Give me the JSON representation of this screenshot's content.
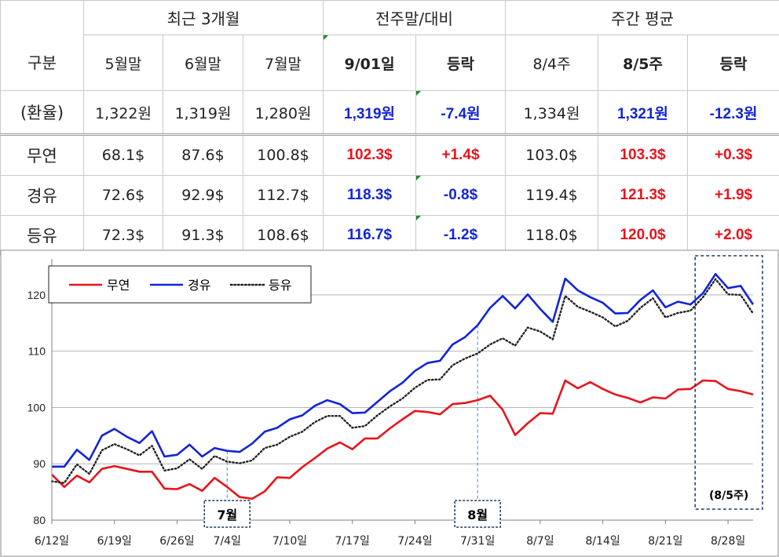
{
  "table": {
    "groups": {
      "recent": "최근 3개월",
      "prev_week": "전주말/대비",
      "weekly_avg": "주간 평균"
    },
    "col_headers": {
      "label": "구분",
      "may": "5월말",
      "jun": "6월말",
      "jul": "7월말",
      "date": "9/01일",
      "change1": "등락",
      "w4": "8/4주",
      "w5": "8/5주",
      "change2": "등락"
    },
    "rows": [
      {
        "label": "(환율)",
        "may": "1,322원",
        "jun": "1,319원",
        "jul": "1,280원",
        "date": "1,319원",
        "change1": "-7.4원",
        "w4": "1,334원",
        "w5": "1,321원",
        "change2": "-12.3원"
      },
      {
        "label": "무연",
        "may": "68.1$",
        "jun": "87.6$",
        "jul": "100.8$",
        "date": "102.3$",
        "change1": "+1.4$",
        "w4": "103.0$",
        "w5": "103.3$",
        "change2": "+0.3$"
      },
      {
        "label": "경유",
        "may": "72.6$",
        "jun": "92.9$",
        "jul": "112.7$",
        "date": "118.3$",
        "change1": "-0.8$",
        "w4": "119.4$",
        "w5": "121.3$",
        "change2": "+1.9$"
      },
      {
        "label": "등유",
        "may": "72.3$",
        "jun": "91.3$",
        "jul": "108.6$",
        "date": "116.7$",
        "change1": "-1.2$",
        "w4": "118.0$",
        "w5": "120.0$",
        "change2": "+2.0$"
      }
    ]
  },
  "colors": {
    "red": "#e8141b",
    "blue": "#1224d8",
    "annotation": "#1f3864",
    "guide": "#4f81bd"
  },
  "chart_data": {
    "type": "line",
    "x_tick_labels": [
      "6/12일",
      "6/19일",
      "6/26일",
      "7/4일",
      "7/10일",
      "7/17일",
      "7/24일",
      "7/31일",
      "8/7일",
      "8/14일",
      "8/21일",
      "8/28일"
    ],
    "x_tick_index": [
      0,
      5,
      10,
      14,
      19,
      24,
      29,
      34,
      39,
      44,
      49,
      54
    ],
    "ylim": [
      80,
      125
    ],
    "yticks": [
      80,
      90,
      100,
      110,
      120
    ],
    "grid": true,
    "legend": "top-left",
    "series": [
      {
        "name": "무연",
        "color": "#e8141b",
        "style": "solid",
        "values": [
          88.1,
          85.9,
          87.9,
          86.7,
          89.1,
          89.6,
          89.1,
          88.6,
          88.6,
          85.6,
          85.5,
          86.4,
          85.2,
          87.5,
          85.9,
          84.1,
          83.8,
          85.1,
          87.6,
          87.5,
          89.4,
          91.0,
          92.7,
          93.8,
          92.6,
          94.5,
          94.5,
          96.3,
          97.9,
          99.4,
          99.2,
          98.8,
          100.6,
          100.8,
          101.3,
          102.1,
          99.6,
          95.1,
          97.2,
          99.0,
          98.9,
          104.8,
          103.4,
          104.5,
          103.3,
          102.3,
          101.7,
          100.9,
          101.8,
          101.6,
          103.2,
          103.3,
          104.8,
          104.7,
          103.3,
          102.9,
          102.3
        ]
      },
      {
        "name": "경유",
        "color": "#1224d8",
        "style": "solid",
        "values": [
          89.5,
          89.5,
          92.5,
          90.7,
          95.0,
          96.2,
          94.8,
          93.7,
          95.8,
          91.3,
          91.6,
          93.4,
          91.3,
          92.8,
          92.3,
          92.1,
          93.6,
          95.7,
          96.4,
          97.9,
          98.6,
          100.3,
          101.3,
          100.6,
          99.0,
          99.1,
          101.0,
          102.9,
          104.4,
          106.5,
          107.9,
          108.3,
          111.2,
          112.5,
          114.6,
          117.7,
          119.8,
          117.6,
          120.1,
          117.5,
          115.2,
          122.9,
          120.8,
          119.6,
          118.6,
          116.7,
          116.8,
          119.1,
          120.8,
          117.8,
          118.8,
          118.3,
          120.3,
          123.7,
          121.2,
          121.6,
          118.3
        ]
      },
      {
        "name": "등유",
        "color": "#222222",
        "style": "dotted",
        "values": [
          86.9,
          86.6,
          89.9,
          88.2,
          92.4,
          93.5,
          92.6,
          91.5,
          93.2,
          88.8,
          89.2,
          90.8,
          89.1,
          91.4,
          90.4,
          90.1,
          90.6,
          92.8,
          93.4,
          94.8,
          95.7,
          97.4,
          98.5,
          98.5,
          96.4,
          96.7,
          98.6,
          100.2,
          101.6,
          103.5,
          104.9,
          105.0,
          107.5,
          108.7,
          109.6,
          111.2,
          112.3,
          111.0,
          114.2,
          113.5,
          112.1,
          119.8,
          117.9,
          117.0,
          116.0,
          114.4,
          115.4,
          117.7,
          119.4,
          116.0,
          116.8,
          117.2,
          119.6,
          122.8,
          120.1,
          120.0,
          116.7
        ]
      }
    ],
    "annotations": [
      {
        "label": "7월",
        "index": 14
      },
      {
        "label": "8월",
        "index": 34
      },
      {
        "label": "(8/5주)",
        "start_index": 52,
        "end_index": 56
      }
    ]
  }
}
